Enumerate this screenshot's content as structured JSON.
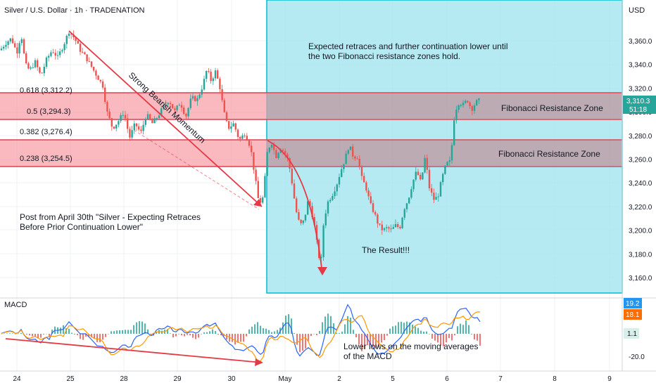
{
  "header": {
    "title": "Silver / U.S. Dollar · 1h · TRADENATION",
    "currency": "USD"
  },
  "colors": {
    "bull": "#26a69a",
    "bear": "#ef5350",
    "zone": "#f8a8b0",
    "zone_line": "#e0404f",
    "box": "#a8e6f0",
    "box_border": "#00bcd4",
    "arrow": "#e63946",
    "macd": "#2962ff",
    "signal": "#ff9800",
    "badge_blue": "#2196f3",
    "badge_orange": "#ff6d00"
  },
  "fib_levels": [
    {
      "label": "0.618 (3,312.2)",
      "value": 3312.2,
      "color": "#4caf50"
    },
    {
      "label": "0.5 (3,294.3)",
      "value": 3294.3,
      "color": "#131722"
    },
    {
      "label": "0.382 (3,276.4)",
      "value": 3276.4,
      "color": "#4caf50"
    },
    {
      "label": "0.238 (3,254.5)",
      "value": 3254.5,
      "color": "#131722"
    }
  ],
  "zones": [
    {
      "label": "Fibonacci Resistance Zone",
      "top": 3316,
      "bottom": 3291
    },
    {
      "label": "Fibonacci Resistance Zone",
      "top": 3276,
      "bottom": 3254
    }
  ],
  "annotations": {
    "momentum": "Strong Bearish Momentum",
    "expected_line1": "Expected retraces and further continuation lower until",
    "expected_line2": "the two Fibonacci resistance zones hold.",
    "post_line1": "Post from April 30th \"Silver - Expecting Retraces",
    "post_line2": "Before Prior Continuation Lower\"",
    "result": "The Result!!!",
    "macd_line1": "Lower lows on the moving averages",
    "macd_line2": "of the MACD"
  },
  "badges": {
    "price": "3,310.3",
    "countdown": "51:18",
    "macd": "19.2",
    "signal": "18.1",
    "hist": "1.1"
  },
  "macd_panel": {
    "title": "MACD",
    "axis_label": "-20.0"
  },
  "chart_data": {
    "type": "candlestick",
    "title": "Silver / U.S. Dollar · 1h · TRADENATION",
    "y_ticks": [
      "3,360.0",
      "3,340.0",
      "3,320.0",
      "3,300.0",
      "3,280.0",
      "3,260.0",
      "3,240.0",
      "3,220.0",
      "3,200.0",
      "3,180.0",
      "3,160.0"
    ],
    "ylim": [
      3140,
      3380
    ],
    "x_ticks": [
      "24",
      "25",
      "28",
      "29",
      "30",
      "May",
      "2",
      "5",
      "6",
      "7",
      "8",
      "9"
    ],
    "price_path": [
      [
        0,
        3352
      ],
      [
        8,
        3358
      ],
      [
        16,
        3362
      ],
      [
        24,
        3350
      ],
      [
        30,
        3366
      ],
      [
        36,
        3340
      ],
      [
        42,
        3335
      ],
      [
        50,
        3342
      ],
      [
        58,
        3330
      ],
      [
        66,
        3344
      ],
      [
        74,
        3352
      ],
      [
        82,
        3346
      ],
      [
        90,
        3356
      ],
      [
        98,
        3368
      ],
      [
        106,
        3362
      ],
      [
        114,
        3352
      ],
      [
        122,
        3346
      ],
      [
        130,
        3338
      ],
      [
        138,
        3330
      ],
      [
        146,
        3322
      ],
      [
        152,
        3300
      ],
      [
        160,
        3286
      ],
      [
        168,
        3292
      ],
      [
        176,
        3300
      ],
      [
        184,
        3278
      ],
      [
        192,
        3290
      ],
      [
        200,
        3282
      ],
      [
        208,
        3298
      ],
      [
        216,
        3290
      ],
      [
        224,
        3296
      ],
      [
        232,
        3304
      ],
      [
        240,
        3310
      ],
      [
        248,
        3300
      ],
      [
        256,
        3308
      ],
      [
        264,
        3296
      ],
      [
        272,
        3312
      ],
      [
        280,
        3310
      ],
      [
        288,
        3322
      ],
      [
        294,
        3336
      ],
      [
        300,
        3326
      ],
      [
        306,
        3334
      ],
      [
        312,
        3322
      ],
      [
        318,
        3300
      ],
      [
        324,
        3286
      ],
      [
        332,
        3290
      ],
      [
        340,
        3276
      ],
      [
        348,
        3282
      ],
      [
        356,
        3270
      ],
      [
        362,
        3246
      ],
      [
        368,
        3222
      ],
      [
        374,
        3228
      ],
      [
        380,
        3268
      ],
      [
        386,
        3274
      ],
      [
        392,
        3262
      ],
      [
        398,
        3270
      ],
      [
        404,
        3266
      ],
      [
        410,
        3258
      ],
      [
        416,
        3236
      ],
      [
        420,
        3218
      ],
      [
        426,
        3204
      ],
      [
        432,
        3208
      ],
      [
        438,
        3226
      ],
      [
        444,
        3212
      ],
      [
        448,
        3200
      ],
      [
        452,
        3180
      ],
      [
        456,
        3172
      ],
      [
        460,
        3208
      ],
      [
        466,
        3224
      ],
      [
        472,
        3230
      ],
      [
        478,
        3238
      ],
      [
        484,
        3250
      ],
      [
        490,
        3260
      ],
      [
        496,
        3272
      ],
      [
        502,
        3262
      ],
      [
        508,
        3262
      ],
      [
        514,
        3244
      ],
      [
        520,
        3236
      ],
      [
        526,
        3222
      ],
      [
        532,
        3214
      ],
      [
        538,
        3204
      ],
      [
        544,
        3200
      ],
      [
        550,
        3202
      ],
      [
        556,
        3200
      ],
      [
        562,
        3204
      ],
      [
        568,
        3202
      ],
      [
        574,
        3218
      ],
      [
        580,
        3226
      ],
      [
        586,
        3240
      ],
      [
        592,
        3250
      ],
      [
        598,
        3240
      ],
      [
        604,
        3262
      ],
      [
        610,
        3236
      ],
      [
        616,
        3226
      ],
      [
        622,
        3228
      ],
      [
        628,
        3244
      ],
      [
        634,
        3256
      ],
      [
        640,
        3258
      ],
      [
        646,
        3300
      ],
      [
        652,
        3308
      ],
      [
        658,
        3306
      ],
      [
        664,
        3310
      ],
      [
        670,
        3302
      ],
      [
        676,
        3308
      ],
      [
        682,
        3310
      ]
    ]
  }
}
